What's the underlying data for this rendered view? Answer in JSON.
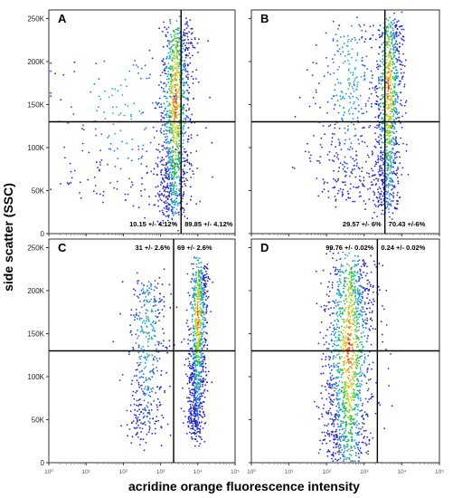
{
  "figure": {
    "ylabel": "side scatter (SSC)",
    "xlabel": "acridine orange fluorescence intensity"
  },
  "chart_data": [
    {
      "type": "scatter",
      "panel_label": "A",
      "xscale": "log",
      "ylim": [
        0,
        260000
      ],
      "y_ticks": [
        "0",
        "50K",
        "100K",
        "150K",
        "200K",
        "250K"
      ],
      "x_ticks": [],
      "gate_y": 130000,
      "gate_x_relative": 0.71,
      "quadrant_labels": [
        "10.15 +/- 4.12%",
        "89.85 +/- 4.12%"
      ],
      "populations": [
        {
          "x_rel": 0.68,
          "y_center": 70000,
          "y_top": 240000,
          "spread_x": 0.12,
          "density": 0.85
        },
        {
          "x_rel": 0.4,
          "y_center": 100000,
          "y_top": 200000,
          "spread_x": 0.55,
          "density": 0.15
        }
      ]
    },
    {
      "type": "scatter",
      "panel_label": "B",
      "xscale": "log",
      "ylim": [
        0,
        260000
      ],
      "y_ticks": [],
      "x_ticks": [],
      "gate_y": 130000,
      "gate_x_relative": 0.71,
      "quadrant_labels": [
        "29.57 +/- 6%",
        "70.43 +/-6%"
      ],
      "populations": [
        {
          "x_rel": 0.73,
          "y_center": 90000,
          "y_top": 245000,
          "spread_x": 0.1,
          "density": 0.7
        },
        {
          "x_rel": 0.52,
          "y_center": 120000,
          "y_top": 240000,
          "spread_x": 0.25,
          "density": 0.3
        }
      ]
    },
    {
      "type": "scatter",
      "panel_label": "C",
      "xscale": "log",
      "ylim": [
        0,
        260000
      ],
      "y_ticks": [
        "0",
        "50K",
        "100K",
        "150K",
        "200K",
        "250K"
      ],
      "x_ticks": [
        "10⁰",
        "10¹",
        "10²",
        "10³",
        "10⁴",
        "10⁵"
      ],
      "gate_y": 130000,
      "gate_x_relative": 0.67,
      "quadrant_labels": [
        "31 +/- 2.6%",
        "69 +/- 2.6%"
      ],
      "populations": [
        {
          "x_rel": 0.8,
          "y_center": 110000,
          "y_top": 230000,
          "spread_x": 0.07,
          "density": 0.69
        },
        {
          "x_rel": 0.53,
          "y_center": 90000,
          "y_top": 210000,
          "spread_x": 0.15,
          "density": 0.31
        }
      ]
    },
    {
      "type": "scatter",
      "panel_label": "D",
      "xscale": "log",
      "ylim": [
        0,
        260000
      ],
      "y_ticks": [],
      "x_ticks": [
        "10⁰",
        "10¹",
        "10²",
        "10³",
        "10⁴",
        "10⁵"
      ],
      "gate_y": 130000,
      "gate_x_relative": 0.67,
      "quadrant_labels": [
        "99.76 +/- 0.02%",
        "0.24 +/- 0.02%"
      ],
      "populations": [
        {
          "x_rel": 0.52,
          "y_center": 30000,
          "y_top": 235000,
          "spread_x": 0.18,
          "density": 0.9976
        },
        {
          "x_rel": 0.75,
          "y_center": 150000,
          "y_top": 200000,
          "spread_x": 0.05,
          "density": 0.0024
        }
      ]
    }
  ]
}
